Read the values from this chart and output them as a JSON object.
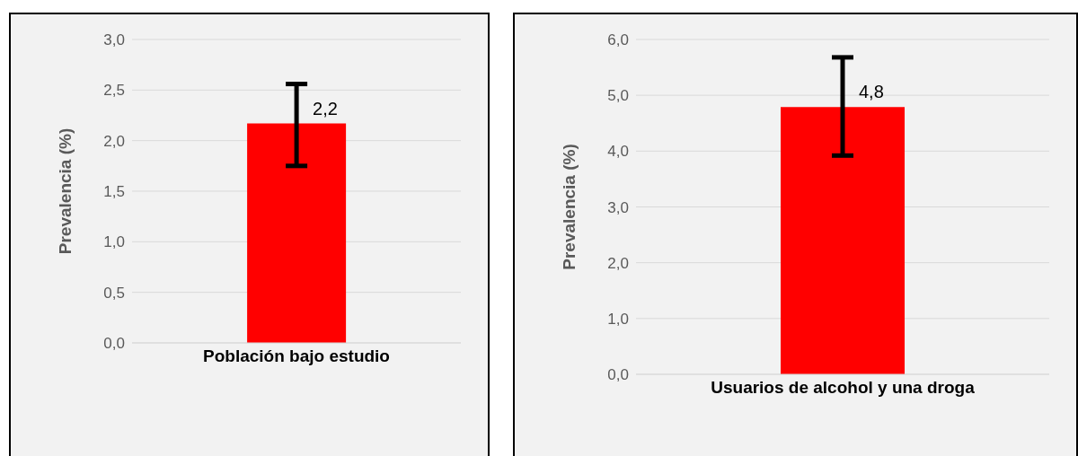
{
  "chart_data": [
    {
      "type": "bar",
      "categories": [
        "Población bajo estudio"
      ],
      "values": [
        2.17
      ],
      "colors": [
        "#ff0000"
      ],
      "errors": [
        [
          1.75,
          2.56
        ]
      ],
      "value_labels": [
        "2,2"
      ],
      "ylabel": "Prevalencia (%)",
      "ylim": [
        0,
        3
      ],
      "yticks": [
        {
          "value": 0,
          "label": "0,0"
        },
        {
          "value": 0.5,
          "label": "0,5"
        },
        {
          "value": 1,
          "label": "1,0"
        },
        {
          "value": 1.5,
          "label": "1,5"
        },
        {
          "value": 2,
          "label": "2,0"
        },
        {
          "value": 2.5,
          "label": "2,5"
        },
        {
          "value": 3,
          "label": "3,0"
        }
      ],
      "grid": "y",
      "legend": false
    },
    {
      "type": "bar",
      "categories": [
        "Usuarios de alcohol y una droga"
      ],
      "values": [
        4.79
      ],
      "colors": [
        "#ff0000"
      ],
      "errors": [
        [
          3.92,
          5.68
        ]
      ],
      "value_labels": [
        "4,8"
      ],
      "ylabel": "Prevalencia (%)",
      "ylim": [
        0,
        6
      ],
      "yticks": [
        {
          "value": 0,
          "label": "0,0"
        },
        {
          "value": 1,
          "label": "1,0"
        },
        {
          "value": 2,
          "label": "2,0"
        },
        {
          "value": 3,
          "label": "3,0"
        },
        {
          "value": 4,
          "label": "4,0"
        },
        {
          "value": 5,
          "label": "5,0"
        },
        {
          "value": 6,
          "label": "6,0"
        }
      ],
      "grid": "y",
      "legend": false
    }
  ]
}
